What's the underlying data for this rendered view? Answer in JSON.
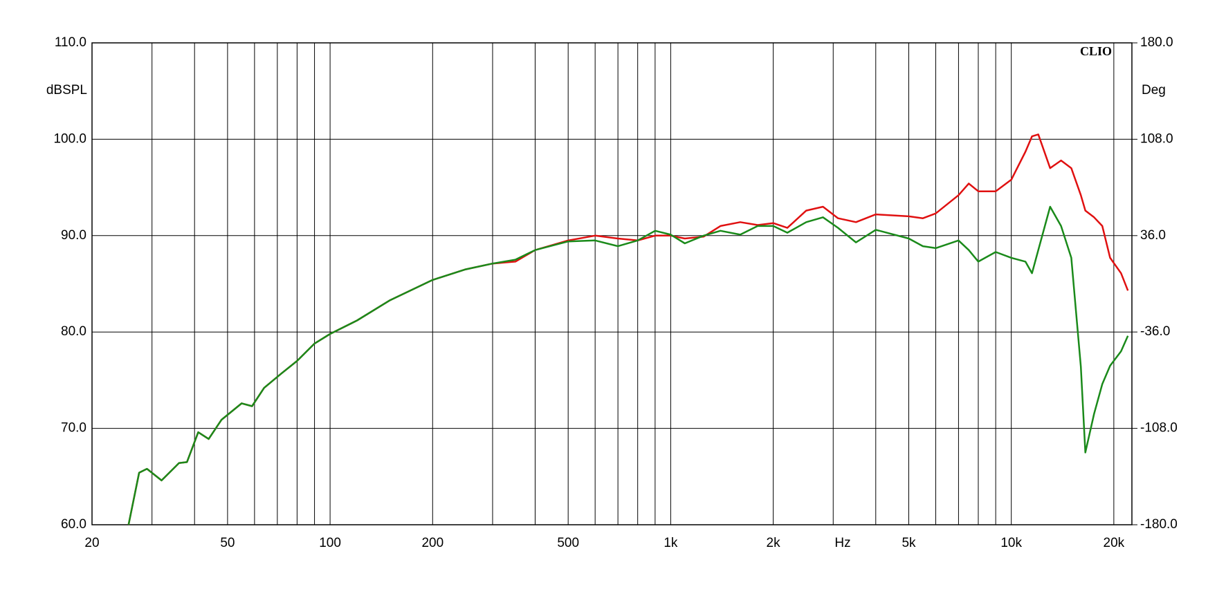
{
  "chart_data": {
    "type": "line",
    "brand": "CLIO",
    "y_label": "dBSPL",
    "y2_label": "Deg",
    "x_label": "Hz",
    "xscale": "log",
    "grid": true,
    "xlim": [
      20,
      22600
    ],
    "xticks": [
      20,
      50,
      100,
      200,
      500,
      {
        "value": 1000,
        "label": "1k"
      },
      {
        "value": 2000,
        "label": "2k"
      },
      {
        "value": 5000,
        "label": "5k"
      },
      {
        "value": 10000,
        "label": "10k"
      },
      {
        "value": 20000,
        "label": "20k"
      }
    ],
    "xminor": [
      30,
      40,
      60,
      70,
      80,
      90,
      300,
      400,
      600,
      700,
      800,
      900,
      3000,
      4000,
      6000,
      7000,
      8000,
      9000
    ],
    "ylim": [
      60,
      110
    ],
    "yticks": [
      {
        "value": 60,
        "label": "60.0"
      },
      {
        "value": 70,
        "label": "70.0"
      },
      {
        "value": 80,
        "label": "80.0"
      },
      {
        "value": 90,
        "label": "90.0"
      },
      {
        "value": 100,
        "label": "100.0"
      },
      {
        "value": 110,
        "label": "110.0"
      }
    ],
    "y2lim": [
      -180,
      180
    ],
    "y2ticks": [
      {
        "value": -180,
        "label": "-180.0"
      },
      {
        "value": -108,
        "label": "-108.0"
      },
      {
        "value": -36,
        "label": "-36.0"
      },
      {
        "value": 36,
        "label": "36.0"
      },
      {
        "value": 108,
        "label": "108.0"
      },
      {
        "value": 180,
        "label": "180.0"
      }
    ],
    "x": [
      25.6,
      27.5,
      29,
      32,
      36,
      38,
      41,
      44,
      48,
      55,
      59,
      64,
      72,
      80,
      90,
      100,
      120,
      150,
      200,
      250,
      300,
      350,
      400,
      500,
      600,
      700,
      800,
      900,
      1000,
      1100,
      1250,
      1400,
      1600,
      1800,
      2000,
      2200,
      2500,
      2800,
      3100,
      3500,
      4000,
      5000,
      5500,
      6000,
      7000,
      7500,
      8000,
      9000,
      10000,
      11000,
      11500,
      12000,
      13000,
      14000,
      15000,
      16000,
      16500,
      17500,
      18500,
      19500,
      21000,
      22000
    ],
    "series": [
      {
        "color": "#e01010",
        "values": [
          60,
          65.4,
          65.8,
          64.6,
          66.4,
          66.5,
          69.6,
          68.9,
          70.9,
          72.6,
          72.3,
          74.2,
          75.7,
          77.0,
          78.8,
          79.8,
          81.2,
          83.3,
          85.4,
          86.5,
          87.1,
          87.3,
          88.5,
          89.5,
          90.0,
          89.7,
          89.5,
          90.0,
          90.0,
          89.7,
          89.9,
          91.0,
          91.4,
          91.1,
          91.3,
          90.8,
          92.6,
          93.0,
          91.8,
          91.4,
          92.2,
          92.0,
          91.8,
          92.3,
          94.2,
          95.4,
          94.6,
          94.6,
          95.8,
          98.7,
          100.3,
          100.5,
          97.0,
          97.8,
          97.0,
          94.2,
          92.6,
          91.9,
          91.0,
          87.7,
          86.1,
          84.3
        ]
      },
      {
        "color": "#1a8a1a",
        "values": [
          60,
          65.4,
          65.8,
          64.6,
          66.4,
          66.5,
          69.6,
          68.9,
          70.9,
          72.6,
          72.3,
          74.2,
          75.7,
          77.0,
          78.8,
          79.8,
          81.2,
          83.3,
          85.4,
          86.5,
          87.1,
          87.5,
          88.5,
          89.4,
          89.5,
          88.9,
          89.5,
          90.5,
          90.1,
          89.2,
          90.0,
          90.5,
          90.1,
          91.0,
          91.0,
          90.3,
          91.4,
          91.9,
          90.8,
          89.3,
          90.6,
          89.7,
          88.9,
          88.7,
          89.5,
          88.5,
          87.3,
          88.3,
          87.7,
          87.3,
          86.1,
          88.5,
          93.0,
          91.0,
          87.7,
          76.4,
          67.5,
          71.5,
          74.6,
          76.5,
          78.0,
          79.6
        ]
      }
    ]
  }
}
